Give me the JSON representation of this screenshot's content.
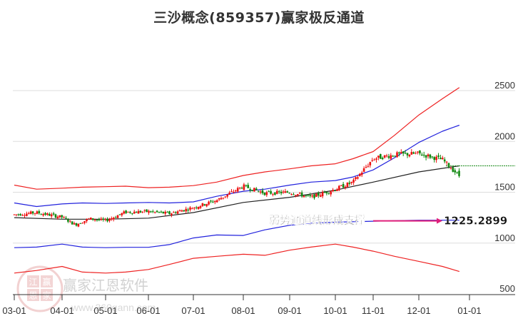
{
  "title": "三沙概念(859357)赢家极反通道",
  "chart_data": {
    "type": "line",
    "subtype": "candlestick-with-channel",
    "title": "三沙概念(859357)赢家极反通道",
    "xlabel": "",
    "ylabel": "",
    "ylim": [
      450,
      2650
    ],
    "yticks": [
      500,
      1000,
      1500,
      2000,
      2500
    ],
    "xticks": [
      "03-01",
      "04-01",
      "05-01",
      "06-01",
      "07-01",
      "08-01",
      "09-01",
      "10-01",
      "11-01",
      "12-01",
      "01-01"
    ],
    "grid": true,
    "legend": null,
    "series": [
      {
        "name": "upper-outer-channel",
        "color": "#ee2222",
        "x": [
          "03-01",
          "03-15",
          "04-01",
          "04-15",
          "05-01",
          "05-15",
          "06-01",
          "06-15",
          "07-01",
          "07-15",
          "08-01",
          "08-15",
          "09-01",
          "09-15",
          "10-01",
          "10-15",
          "11-01",
          "11-15",
          "12-01",
          "12-15",
          "12-25"
        ],
        "values": [
          1570,
          1530,
          1540,
          1550,
          1555,
          1560,
          1545,
          1550,
          1565,
          1600,
          1665,
          1700,
          1730,
          1760,
          1780,
          1830,
          1900,
          2060,
          2260,
          2420,
          2530
        ]
      },
      {
        "name": "upper-inner-channel",
        "color": "#2222dd",
        "x": [
          "03-01",
          "03-15",
          "04-01",
          "04-15",
          "05-01",
          "05-15",
          "06-01",
          "06-15",
          "07-01",
          "07-15",
          "08-01",
          "08-15",
          "09-01",
          "09-15",
          "10-01",
          "10-15",
          "11-01",
          "11-15",
          "12-01",
          "12-15",
          "12-25"
        ],
        "values": [
          1395,
          1360,
          1385,
          1395,
          1390,
          1395,
          1400,
          1395,
          1405,
          1460,
          1510,
          1530,
          1570,
          1600,
          1615,
          1650,
          1720,
          1840,
          1990,
          2100,
          2160
        ]
      },
      {
        "name": "middle-line",
        "color": "#222222",
        "x": [
          "03-01",
          "04-01",
          "05-01",
          "06-01",
          "07-01",
          "08-01",
          "09-01",
          "10-01",
          "11-01",
          "12-01",
          "12-25"
        ],
        "values": [
          1250,
          1235,
          1235,
          1245,
          1300,
          1400,
          1450,
          1520,
          1600,
          1700,
          1760
        ]
      },
      {
        "name": "lower-inner-channel",
        "color": "#2222dd",
        "x": [
          "03-01",
          "03-15",
          "04-01",
          "04-15",
          "05-01",
          "05-15",
          "06-01",
          "06-15",
          "07-01",
          "07-15",
          "08-01",
          "08-15",
          "09-01",
          "09-15",
          "10-01",
          "10-15",
          "11-01",
          "11-15",
          "12-01",
          "12-15",
          "12-25"
        ],
        "values": [
          955,
          960,
          990,
          960,
          955,
          958,
          958,
          985,
          1050,
          1080,
          1075,
          1130,
          1175,
          1195,
          1205,
          1210,
          1215,
          1220,
          1225,
          1225,
          1225
        ]
      },
      {
        "name": "lower-outer-channel",
        "color": "#ee2222",
        "x": [
          "03-01",
          "03-15",
          "04-01",
          "04-15",
          "05-01",
          "05-15",
          "06-01",
          "06-15",
          "07-01",
          "07-15",
          "08-01",
          "08-15",
          "09-01",
          "09-15",
          "10-01",
          "10-15",
          "11-01",
          "11-15",
          "12-01",
          "12-15",
          "12-25"
        ],
        "values": [
          705,
          730,
          770,
          715,
          705,
          715,
          740,
          790,
          850,
          870,
          890,
          880,
          930,
          960,
          990,
          960,
          920,
          870,
          820,
          770,
          720
        ]
      },
      {
        "name": "price-close",
        "color": "#dd0000",
        "x": [
          "03-01",
          "03-15",
          "04-01",
          "04-10",
          "04-20",
          "05-01",
          "05-15",
          "06-01",
          "06-15",
          "07-01",
          "07-15",
          "08-01",
          "08-15",
          "09-01",
          "09-15",
          "10-01",
          "10-15",
          "11-01",
          "11-15",
          "12-01",
          "12-15",
          "12-25"
        ],
        "values": [
          1280,
          1300,
          1255,
          1180,
          1240,
          1220,
          1305,
          1310,
          1290,
          1350,
          1420,
          1560,
          1490,
          1500,
          1450,
          1530,
          1600,
          1830,
          1870,
          1880,
          1820,
          1660
        ]
      }
    ],
    "reference_line": {
      "name": "latest-level",
      "value": 1760,
      "style": "dashed",
      "color": "#1a8a1a"
    },
    "annotations": [
      {
        "text": "弱势通道线形成支撑",
        "arrow_to_value": 1225.2899,
        "label": "1225.2899",
        "arrow_color": "#e0207a"
      }
    ]
  },
  "annotation": {
    "text": "弱势通道线形成支撑",
    "value_label": "1225.2899"
  },
  "watermark": {
    "logo_chars": [
      "江",
      "赢",
      "恩",
      "家"
    ],
    "brand": "赢家江恩软件",
    "url": "www.360gann.com"
  },
  "colors": {
    "up": "#ee1111",
    "down": "#118811",
    "grid": "#dddddd",
    "axis": "#333333"
  }
}
